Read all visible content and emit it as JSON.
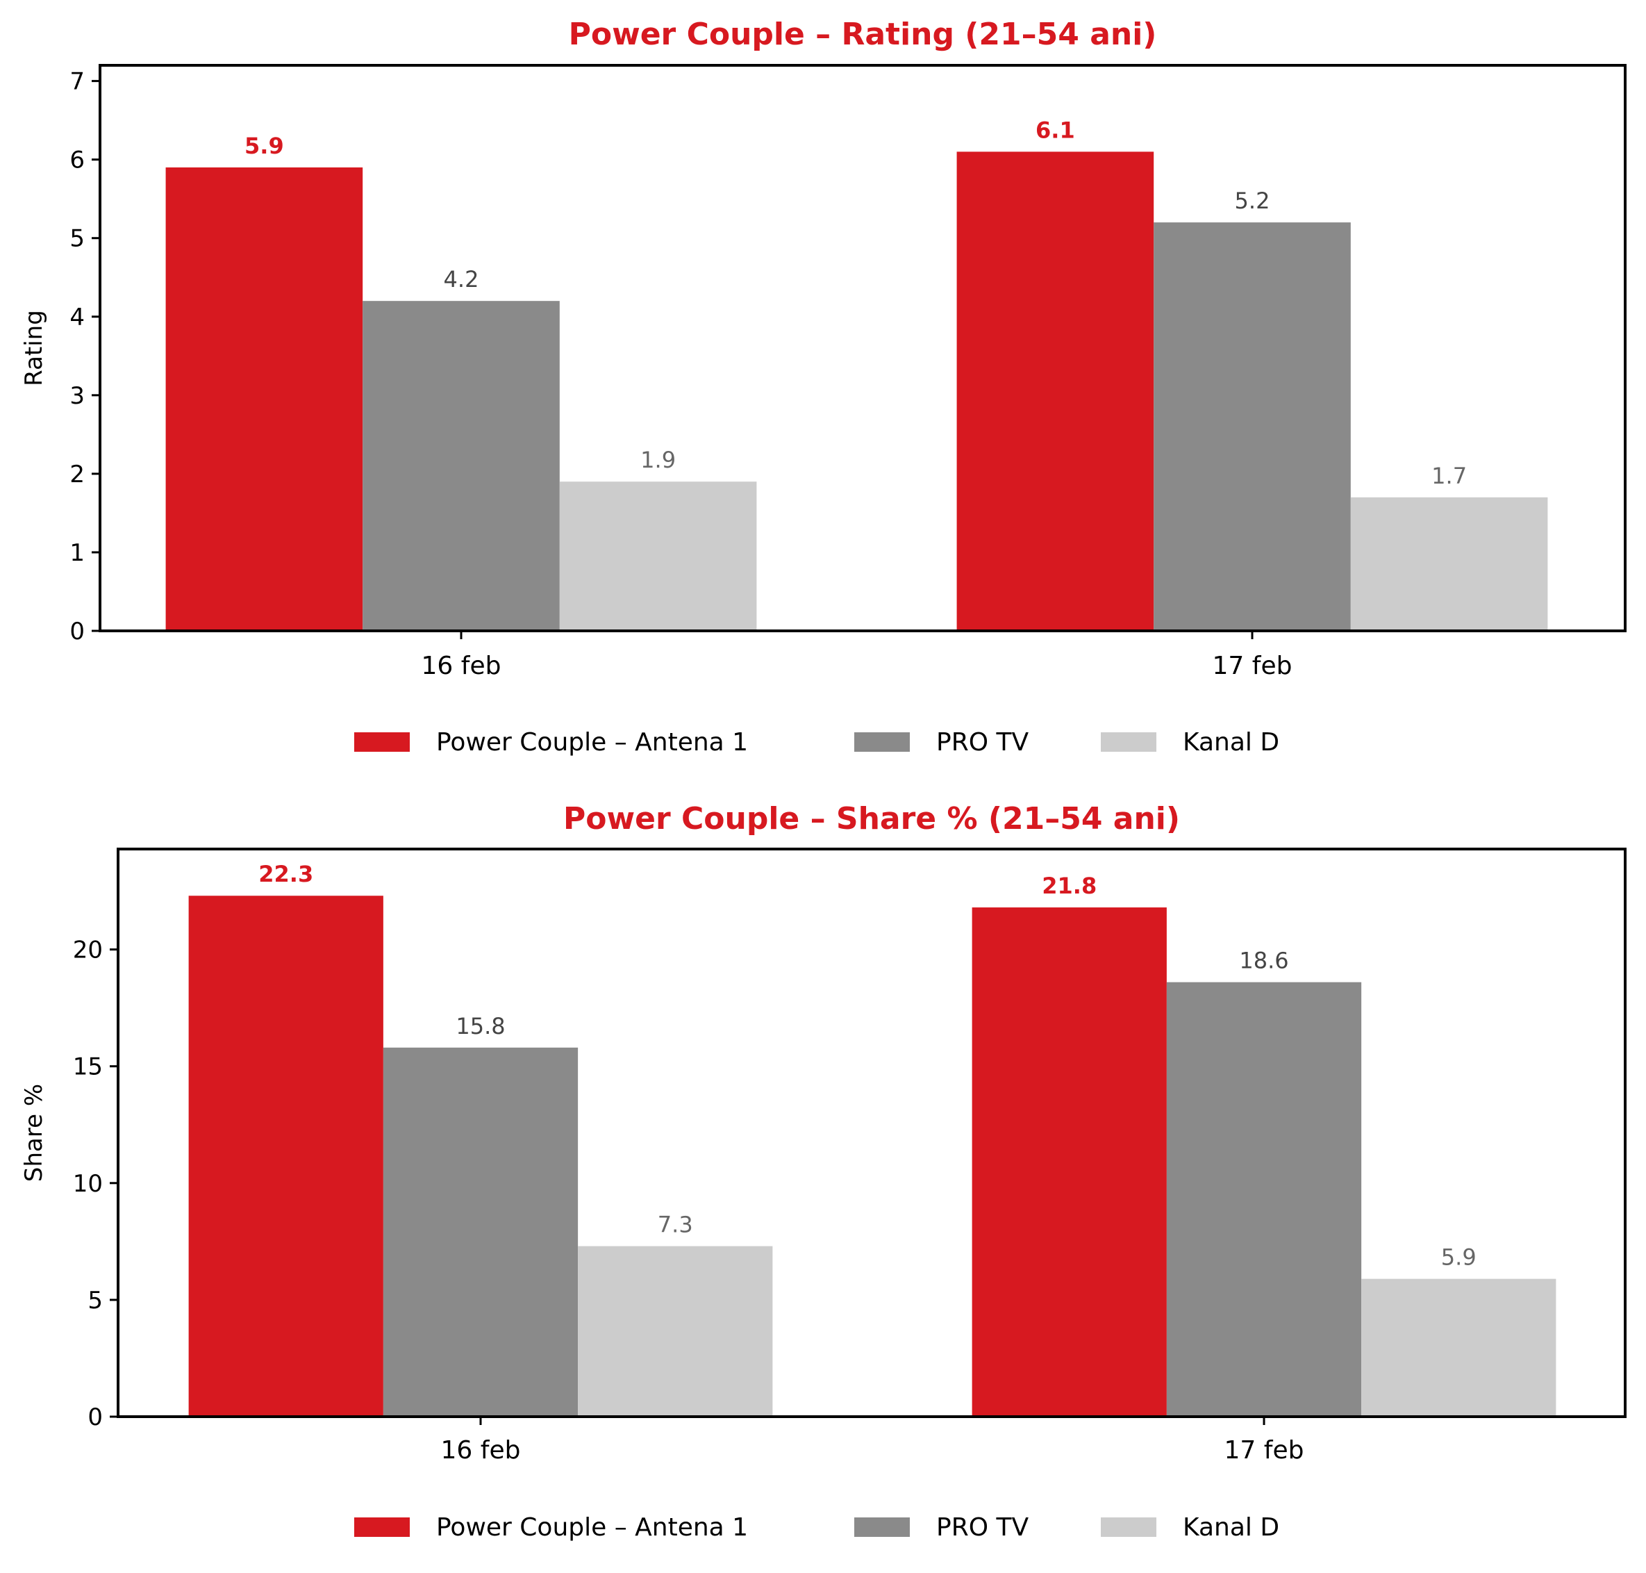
{
  "colors": {
    "antena1": "#d71920",
    "protv": "#8a8a8a",
    "kanald": "#cccccc",
    "title": "#d71920",
    "label_protv": "#444444",
    "label_kanald": "#666666"
  },
  "chart_data": [
    {
      "type": "bar",
      "title": "Power Couple – Rating (21–54 ani)",
      "xlabel": "",
      "ylabel": "Rating",
      "ylim": [
        0,
        7.2
      ],
      "yticks": [
        "0",
        "1",
        "2",
        "3",
        "4",
        "5",
        "6",
        "7"
      ],
      "categories": [
        "16 feb",
        "17 feb"
      ],
      "series": [
        {
          "name": "Power Couple – Antena 1",
          "values": [
            5.9,
            6.1
          ],
          "labels": [
            "5.9",
            "6.1"
          ]
        },
        {
          "name": "PRO TV",
          "values": [
            4.2,
            5.2
          ],
          "labels": [
            "4.2",
            "5.2"
          ]
        },
        {
          "name": "Kanal D",
          "values": [
            1.9,
            1.7
          ],
          "labels": [
            "1.9",
            "1.7"
          ]
        }
      ],
      "legend": "bottom-center",
      "grid": false
    },
    {
      "type": "bar",
      "title": "Power Couple – Share % (21–54 ani)",
      "xlabel": "",
      "ylabel": "Share %",
      "ylim": [
        0,
        24.3
      ],
      "yticks": [
        "0",
        "5",
        "10",
        "15",
        "20"
      ],
      "categories": [
        "16 feb",
        "17 feb"
      ],
      "series": [
        {
          "name": "Power Couple – Antena 1",
          "values": [
            22.3,
            21.8
          ],
          "labels": [
            "22.3",
            "21.8"
          ]
        },
        {
          "name": "PRO TV",
          "values": [
            15.8,
            18.6
          ],
          "labels": [
            "15.8",
            "18.6"
          ]
        },
        {
          "name": "Kanal D",
          "values": [
            7.3,
            5.9
          ],
          "labels": [
            "7.3",
            "5.9"
          ]
        }
      ],
      "legend": "bottom-center",
      "grid": false
    }
  ]
}
